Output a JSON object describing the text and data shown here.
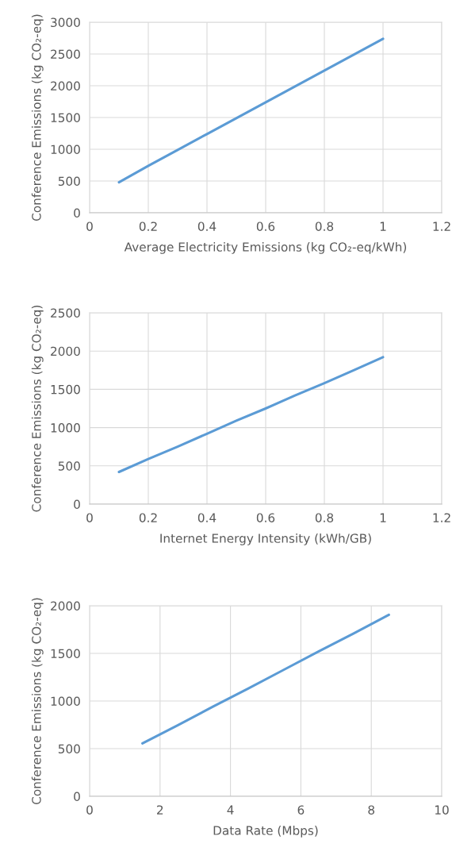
{
  "chart_data": [
    {
      "type": "line",
      "xlabel": "Average Electricity Emissions (kg CO₂-eq/kWh)",
      "ylabel": "Conference Emissions (kg CO₂-eq)",
      "x": [
        0.1,
        0.2,
        0.3,
        0.4,
        0.5,
        0.6,
        0.7,
        0.8,
        0.9,
        1.0
      ],
      "series": [
        {
          "color": "#5b9bd5",
          "values": [
            480,
            740,
            990,
            1240,
            1490,
            1740,
            1990,
            2240,
            2490,
            2740
          ]
        }
      ],
      "xlim": [
        0,
        1.2
      ],
      "xticks": [
        0,
        0.2,
        0.4,
        0.6,
        0.8,
        1,
        1.2
      ],
      "ylim": [
        0,
        3000
      ],
      "yticks": [
        0,
        500,
        1000,
        1500,
        2000,
        2500,
        3000
      ],
      "grid": true
    },
    {
      "type": "line",
      "xlabel": "Internet Energy Intensity (kWh/GB)",
      "ylabel": "Conference Emissions (kg CO₂-eq)",
      "x": [
        0.1,
        0.2,
        0.3,
        0.4,
        0.5,
        0.6,
        0.7,
        0.8,
        0.9,
        1.0
      ],
      "series": [
        {
          "color": "#5b9bd5",
          "values": [
            420,
            590,
            750,
            920,
            1090,
            1250,
            1420,
            1580,
            1750,
            1920
          ]
        }
      ],
      "xlim": [
        0,
        1.2
      ],
      "xticks": [
        0,
        0.2,
        0.4,
        0.6,
        0.8,
        1,
        1.2
      ],
      "ylim": [
        0,
        2500
      ],
      "yticks": [
        0,
        500,
        1000,
        1500,
        2000,
        2500
      ],
      "grid": true
    },
    {
      "type": "line",
      "xlabel": "Data Rate (Mbps)",
      "ylabel": "Conference Emissions (kg CO₂-eq)",
      "x": [
        1.5,
        2.5,
        3.5,
        4.5,
        5.5,
        6.5,
        7.5,
        8.5
      ],
      "series": [
        {
          "color": "#5b9bd5",
          "values": [
            555,
            745,
            940,
            1130,
            1325,
            1520,
            1710,
            1905
          ]
        }
      ],
      "xlim": [
        0,
        10
      ],
      "xticks": [
        0,
        2,
        4,
        6,
        8,
        10
      ],
      "ylim": [
        0,
        2000
      ],
      "yticks": [
        0,
        500,
        1000,
        1500,
        2000
      ],
      "grid": true
    }
  ]
}
